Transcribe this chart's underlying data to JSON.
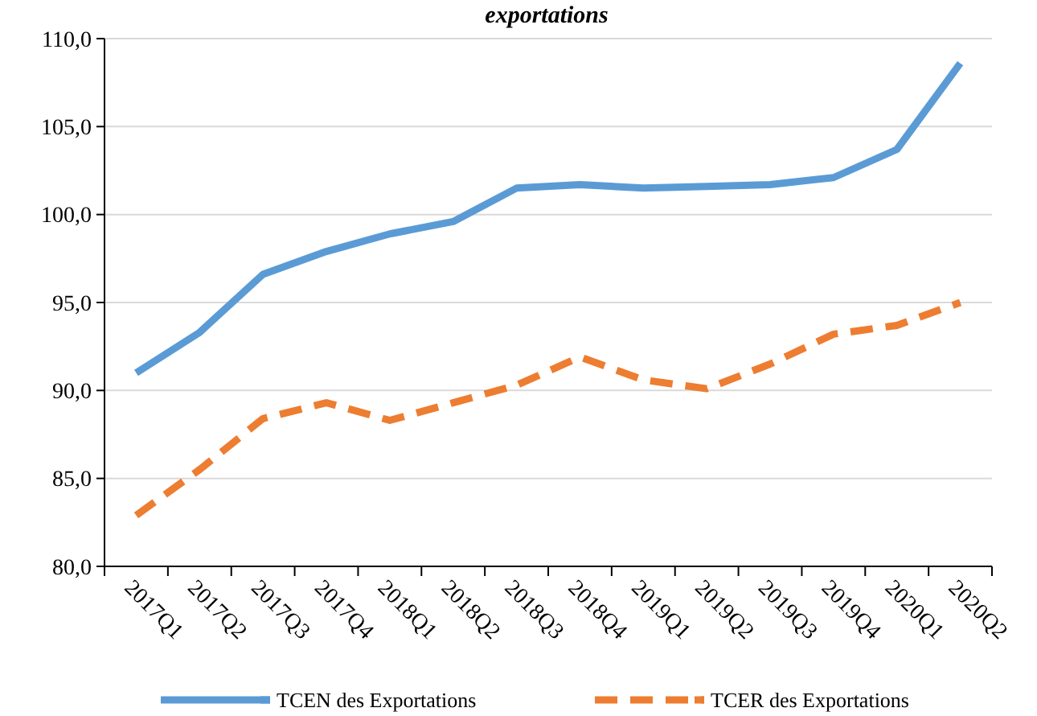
{
  "chart_data": {
    "type": "line",
    "title": "exportations",
    "categories": [
      "2017Q1",
      "2017Q2",
      "2017Q3",
      "2017Q4",
      "2018Q1",
      "2018Q2",
      "2018Q3",
      "2018Q4",
      "2019Q1",
      "2019Q2",
      "2019Q3",
      "2019Q4",
      "2020Q1",
      "2020Q2"
    ],
    "series": [
      {
        "name": "TCEN des Exportations",
        "color": "#5b9bd5",
        "line_style": "solid",
        "values": [
          91.0,
          93.3,
          96.6,
          97.9,
          98.9,
          99.6,
          101.5,
          101.7,
          101.5,
          101.6,
          101.7,
          102.1,
          103.7,
          108.6
        ]
      },
      {
        "name": "TCER des Exportations",
        "color": "#ed7d31",
        "line_style": "dashed",
        "values": [
          82.9,
          85.5,
          88.4,
          89.3,
          88.3,
          89.3,
          90.3,
          91.9,
          90.6,
          90.1,
          91.5,
          93.2,
          93.7,
          95.0
        ]
      }
    ],
    "ylim": [
      80,
      110
    ],
    "yticks": [
      {
        "value": 80,
        "label": "80,0"
      },
      {
        "value": 85,
        "label": "85,0"
      },
      {
        "value": 90,
        "label": "90,0"
      },
      {
        "value": 95,
        "label": "95,0"
      },
      {
        "value": 100,
        "label": "100,0"
      },
      {
        "value": 105,
        "label": "105,0"
      },
      {
        "value": 110,
        "label": "110,0"
      }
    ],
    "grid": "y",
    "legend": "bottom",
    "marker": "none"
  }
}
